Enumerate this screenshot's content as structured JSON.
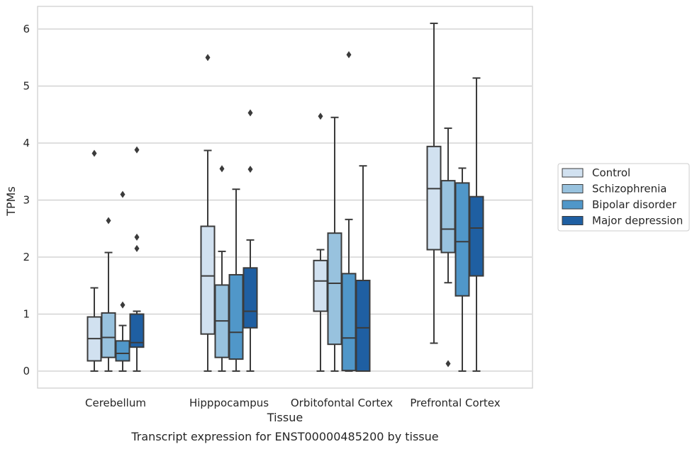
{
  "caption": "Transcript expression for ENST00000485200 by tissue",
  "chart_data": {
    "type": "box",
    "xlabel": "Tissue",
    "ylabel": "TPMs",
    "ylim": [
      -0.3,
      6.4
    ],
    "yticks": [
      "0",
      "1",
      "2",
      "3",
      "4",
      "5",
      "6"
    ],
    "grid": "horizontal",
    "legend_position": "right",
    "categories": [
      "Cerebellum",
      "Hipppocampus",
      "Orbitofontal Cortex",
      "Prefrontal Cortex"
    ],
    "series": [
      {
        "name": "Control",
        "color": "#d1e1f0",
        "boxes": [
          {
            "whislo": 0.0,
            "q1": 0.18,
            "median": 0.57,
            "q3": 0.95,
            "whishi": 1.46,
            "fliers": [
              3.82
            ]
          },
          {
            "whislo": 0.0,
            "q1": 0.65,
            "median": 1.67,
            "q3": 2.54,
            "whishi": 3.87,
            "fliers": [
              5.5
            ]
          },
          {
            "whislo": 0.0,
            "q1": 1.05,
            "median": 1.58,
            "q3": 1.94,
            "whishi": 2.13,
            "fliers": [
              4.47
            ]
          },
          {
            "whislo": 0.49,
            "q1": 2.13,
            "median": 3.2,
            "q3": 3.94,
            "whishi": 6.1,
            "fliers": []
          }
        ]
      },
      {
        "name": "Schizophrenia",
        "color": "#98c2de",
        "boxes": [
          {
            "whislo": 0.0,
            "q1": 0.24,
            "median": 0.59,
            "q3": 1.02,
            "whishi": 2.08,
            "fliers": [
              2.64
            ]
          },
          {
            "whislo": 0.0,
            "q1": 0.24,
            "median": 0.88,
            "q3": 1.51,
            "whishi": 2.1,
            "fliers": [
              3.55
            ]
          },
          {
            "whislo": 0.0,
            "q1": 0.47,
            "median": 1.54,
            "q3": 2.42,
            "whishi": 4.45,
            "fliers": []
          },
          {
            "whislo": 1.55,
            "q1": 2.08,
            "median": 2.49,
            "q3": 3.34,
            "whishi": 4.26,
            "fliers": [
              0.13
            ]
          }
        ]
      },
      {
        "name": "Bipolar disorder",
        "color": "#5097c9",
        "boxes": [
          {
            "whislo": 0.0,
            "q1": 0.18,
            "median": 0.31,
            "q3": 0.53,
            "whishi": 0.8,
            "fliers": [
              1.16,
              3.1
            ]
          },
          {
            "whislo": 0.0,
            "q1": 0.21,
            "median": 0.68,
            "q3": 1.69,
            "whishi": 3.19,
            "fliers": []
          },
          {
            "whislo": 0.0,
            "q1": 0.01,
            "median": 0.58,
            "q3": 1.71,
            "whishi": 2.66,
            "fliers": [
              5.55
            ]
          },
          {
            "whislo": 0.0,
            "q1": 1.32,
            "median": 2.27,
            "q3": 3.3,
            "whishi": 3.56,
            "fliers": []
          }
        ]
      },
      {
        "name": "Major depression",
        "color": "#1f5fa2",
        "boxes": [
          {
            "whislo": 0.0,
            "q1": 0.42,
            "median": 0.5,
            "q3": 1.0,
            "whishi": 1.05,
            "fliers": [
              2.15,
              2.35,
              3.88
            ]
          },
          {
            "whislo": 0.0,
            "q1": 0.76,
            "median": 1.05,
            "q3": 1.81,
            "whishi": 2.3,
            "fliers": [
              3.54,
              4.53
            ]
          },
          {
            "whislo": 0.0,
            "q1": 0.0,
            "median": 0.76,
            "q3": 1.59,
            "whishi": 3.6,
            "fliers": []
          },
          {
            "whislo": 0.0,
            "q1": 1.67,
            "median": 2.51,
            "q3": 3.06,
            "whishi": 5.14,
            "fliers": []
          }
        ]
      }
    ]
  }
}
